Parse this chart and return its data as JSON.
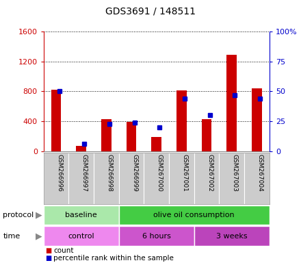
{
  "title": "GDS3691 / 148511",
  "samples": [
    "GSM266996",
    "GSM266997",
    "GSM266998",
    "GSM266999",
    "GSM267000",
    "GSM267001",
    "GSM267002",
    "GSM267003",
    "GSM267004"
  ],
  "counts": [
    820,
    75,
    430,
    390,
    195,
    810,
    430,
    1290,
    840
  ],
  "percentile_ranks": [
    50,
    6,
    23,
    24,
    20,
    44,
    30,
    47,
    44
  ],
  "left_ylim": [
    0,
    1600
  ],
  "right_ylim": [
    0,
    100
  ],
  "left_yticks": [
    0,
    400,
    800,
    1200,
    1600
  ],
  "right_yticks": [
    0,
    25,
    50,
    75,
    100
  ],
  "left_yticklabels": [
    "0",
    "400",
    "800",
    "1200",
    "1600"
  ],
  "right_yticklabels": [
    "0",
    "25",
    "50",
    "75",
    "100%"
  ],
  "bar_color": "#cc0000",
  "dot_color": "#0000cc",
  "protocol_groups": [
    {
      "label": "baseline",
      "start": 0,
      "end": 3,
      "color": "#aae8aa"
    },
    {
      "label": "olive oil consumption",
      "start": 3,
      "end": 9,
      "color": "#44cc44"
    }
  ],
  "time_groups": [
    {
      "label": "control",
      "start": 0,
      "end": 3,
      "color": "#ee88ee"
    },
    {
      "label": "6 hours",
      "start": 3,
      "end": 6,
      "color": "#cc55cc"
    },
    {
      "label": "3 weeks",
      "start": 6,
      "end": 9,
      "color": "#bb44bb"
    }
  ],
  "legend_count_color": "#cc0000",
  "legend_dot_color": "#0000cc",
  "bg_color": "#ffffff",
  "tick_label_color_left": "#cc0000",
  "tick_label_color_right": "#0000cc",
  "xtick_bg_color": "#cccccc"
}
